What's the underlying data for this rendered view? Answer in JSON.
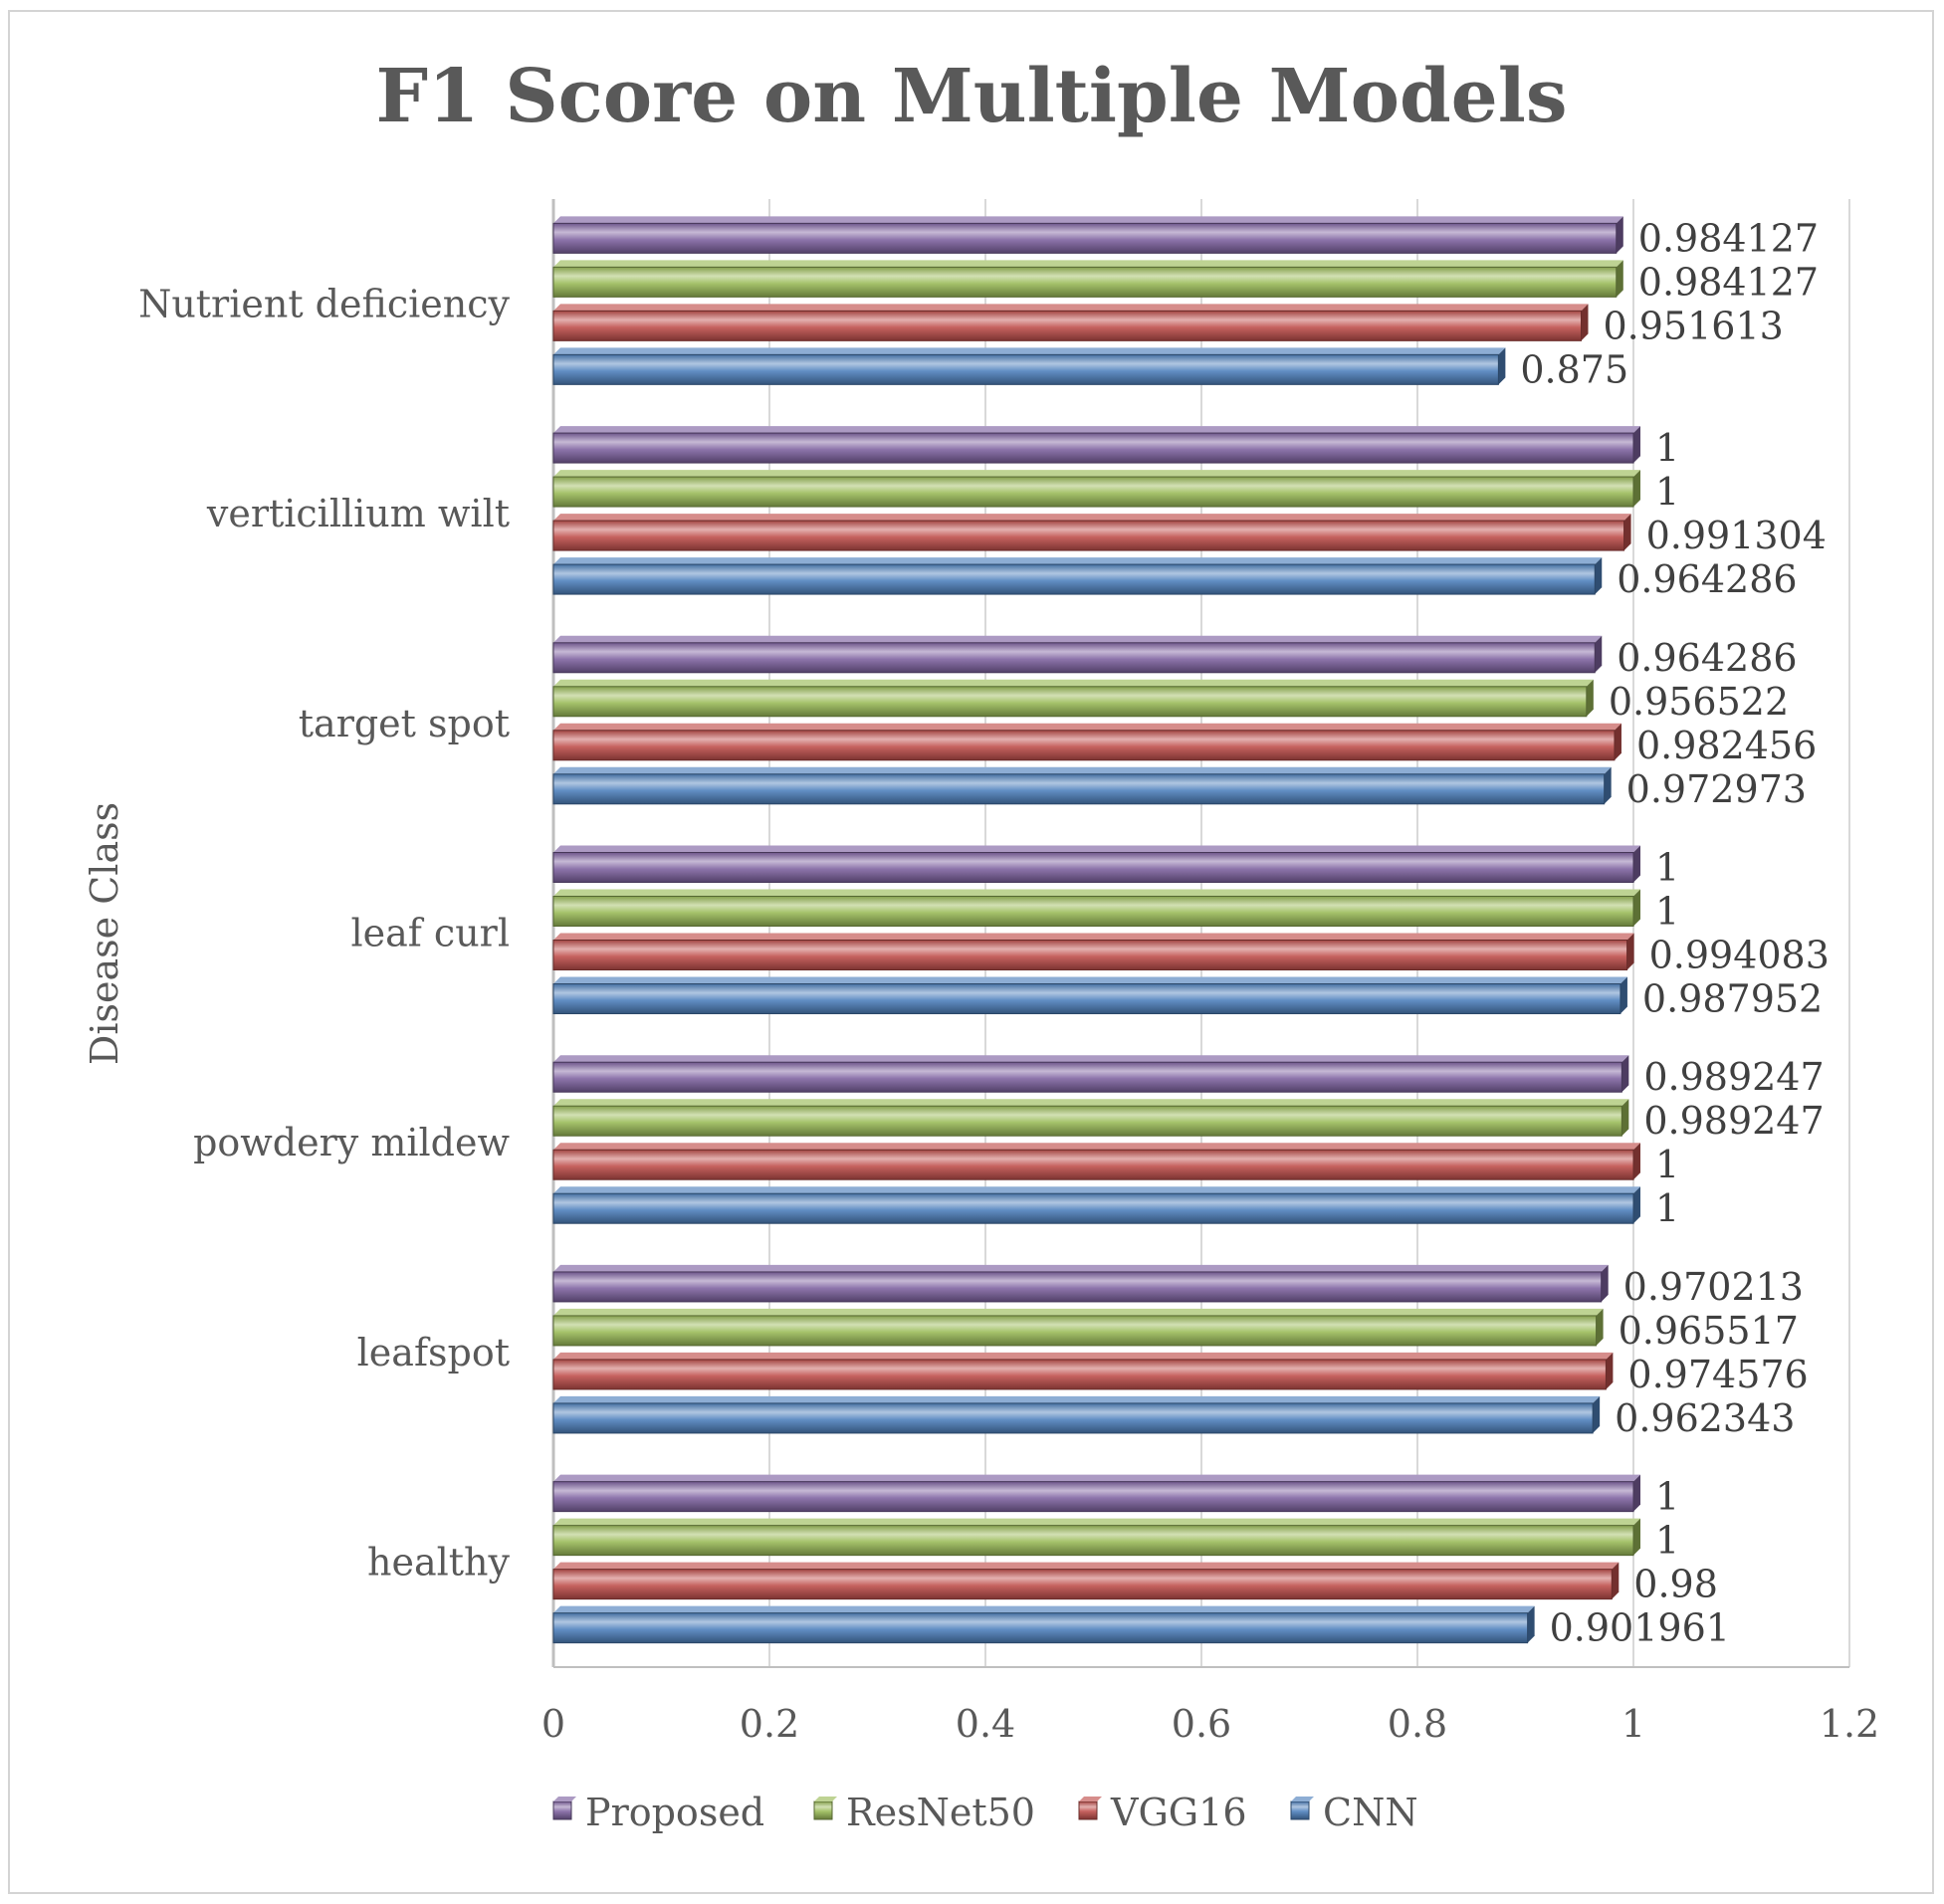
{
  "chart_data": {
    "type": "bar",
    "orientation": "horizontal",
    "title": "F1 Score on Multiple Models",
    "xlabel": "",
    "ylabel": "Disease Class",
    "xlim": [
      0,
      1.2
    ],
    "xticks": [
      0,
      0.2,
      0.4,
      0.6,
      0.8,
      1,
      1.2
    ],
    "xtick_labels": [
      "0",
      "0.2",
      "0.4",
      "0.6",
      "0.8",
      "1",
      "1.2"
    ],
    "grid": true,
    "legend_position": "bottom",
    "categories": [
      "Nutrient deficiency",
      "verticillium wilt",
      "target spot",
      "leaf curl",
      "powdery mildew",
      "leafspot",
      "healthy"
    ],
    "series": [
      {
        "name": "Proposed",
        "color": "#8064a2",
        "values": [
          0.984127,
          1,
          0.964286,
          1,
          0.989247,
          0.970213,
          1
        ],
        "labels": [
          "0.984127",
          "1",
          "0.964286",
          "1",
          "0.989247",
          "0.970213",
          "1"
        ]
      },
      {
        "name": "ResNet50",
        "color": "#9bbb59",
        "values": [
          0.984127,
          1,
          0.956522,
          1,
          0.989247,
          0.965517,
          1
        ],
        "labels": [
          "0.984127",
          "1",
          "0.956522",
          "1",
          "0.989247",
          "0.965517",
          "1"
        ]
      },
      {
        "name": "VGG16",
        "color": "#c0504d",
        "values": [
          0.951613,
          0.991304,
          0.982456,
          0.994083,
          1,
          0.974576,
          0.98
        ],
        "labels": [
          "0.951613",
          "0.991304",
          "0.982456",
          "0.994083",
          "1",
          "0.974576",
          "0.98"
        ]
      },
      {
        "name": "CNN",
        "color": "#4f81bd",
        "values": [
          0.875,
          0.964286,
          0.972973,
          0.987952,
          1,
          0.962343,
          0.901961
        ],
        "labels": [
          "0.875",
          "0.964286",
          "0.972973",
          "0.987952",
          "1",
          "0.962343",
          "0.901961"
        ]
      }
    ]
  }
}
